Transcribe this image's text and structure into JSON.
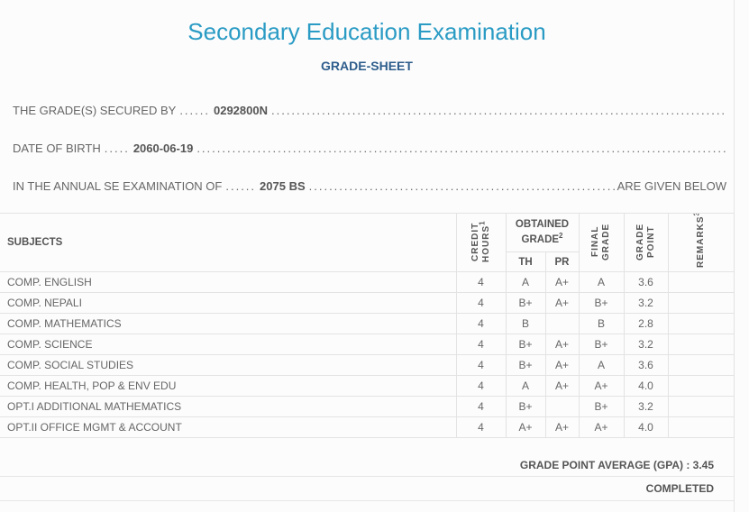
{
  "title": "Secondary Education Examination",
  "subtitle": "GRADE-SHEET",
  "info": {
    "secured_by_label": "THE GRADE(S) SECURED BY",
    "symbol_no": "0292800N",
    "dob_label": "DATE OF BIRTH",
    "dob": "2060-06-19",
    "exam_label": "IN THE ANNUAL SE EXAMINATION OF",
    "exam_year": "2075 BS",
    "exam_suffix": "ARE GIVEN BELOW"
  },
  "table": {
    "headers": {
      "subjects": "SUBJECTS",
      "credit": "CREDIT HOURS",
      "credit_sup": "1",
      "obtained": "OBTAINED GRADE",
      "obtained_sup": "2",
      "th": "TH",
      "pr": "PR",
      "final": "FINAL GRADE",
      "point": "GRADE POINT",
      "remarks": "REMARKS",
      "remarks_sup": "3"
    },
    "rows": [
      {
        "subject": "COMP. ENGLISH",
        "credit": "4",
        "th": "A",
        "pr": "A+",
        "final": "A",
        "point": "3.6",
        "remarks": ""
      },
      {
        "subject": "COMP. NEPALI",
        "credit": "4",
        "th": "B+",
        "pr": "A+",
        "final": "B+",
        "point": "3.2",
        "remarks": ""
      },
      {
        "subject": "COMP. MATHEMATICS",
        "credit": "4",
        "th": "B",
        "pr": "",
        "final": "B",
        "point": "2.8",
        "remarks": ""
      },
      {
        "subject": "COMP. SCIENCE",
        "credit": "4",
        "th": "B+",
        "pr": "A+",
        "final": "B+",
        "point": "3.2",
        "remarks": ""
      },
      {
        "subject": "COMP. SOCIAL STUDIES",
        "credit": "4",
        "th": "B+",
        "pr": "A+",
        "final": "A",
        "point": "3.6",
        "remarks": ""
      },
      {
        "subject": "COMP. HEALTH, POP & ENV EDU",
        "credit": "4",
        "th": "A",
        "pr": "A+",
        "final": "A+",
        "point": "4.0",
        "remarks": ""
      },
      {
        "subject": "OPT.I ADDITIONAL MATHEMATICS",
        "credit": "4",
        "th": "B+",
        "pr": "",
        "final": "B+",
        "point": "3.2",
        "remarks": ""
      },
      {
        "subject": "OPT.II OFFICE MGMT & ACCOUNT",
        "credit": "4",
        "th": "A+",
        "pr": "A+",
        "final": "A+",
        "point": "4.0",
        "remarks": ""
      }
    ]
  },
  "gpa_label": "GRADE POINT AVERAGE (GPA) : 3.45",
  "result": "COMPLETED"
}
